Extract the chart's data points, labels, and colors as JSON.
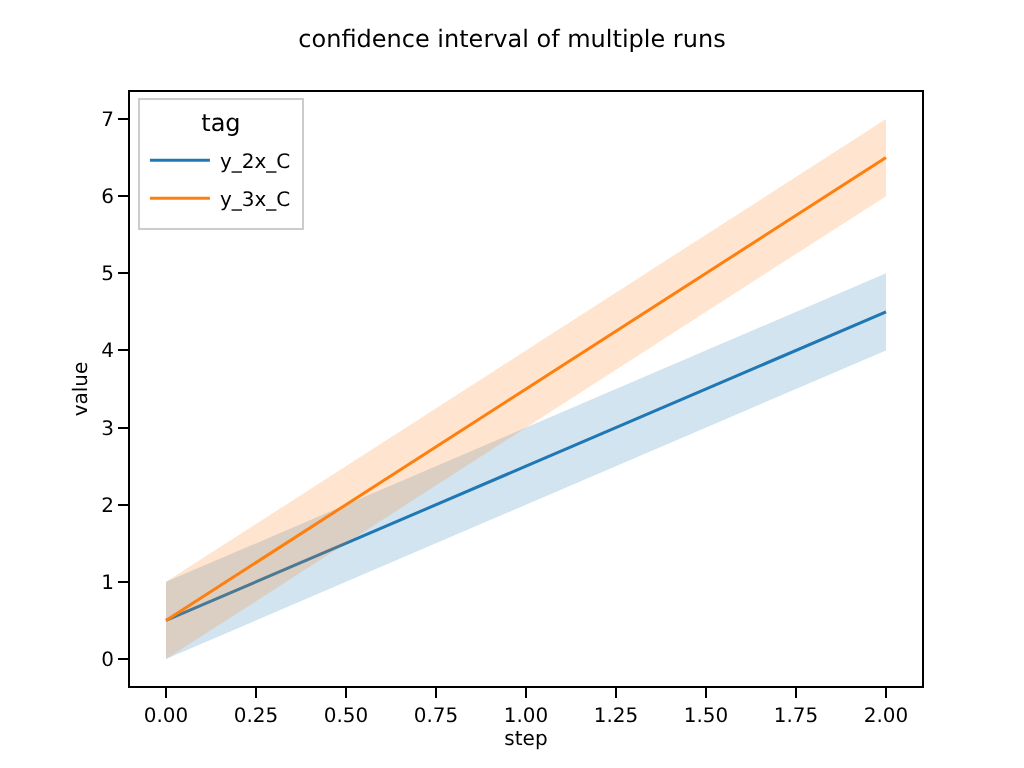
{
  "chart_data": {
    "type": "line",
    "title": "confidence interval of multiple runs",
    "xlabel": "step",
    "ylabel": "value",
    "legend_title": "tag",
    "x": [
      0,
      1,
      2
    ],
    "series": [
      {
        "name": "y_2x_C",
        "color": "#1f77b4",
        "values": [
          0.5,
          2.5,
          4.5
        ],
        "lower": [
          0,
          2,
          4
        ],
        "upper": [
          1,
          3,
          5
        ]
      },
      {
        "name": "y_3x_C",
        "color": "#ff7f0e",
        "values": [
          0.5,
          3.5,
          6.5
        ],
        "lower": [
          0,
          3,
          6
        ],
        "upper": [
          1,
          4,
          7
        ]
      }
    ],
    "xlim": [
      -0.1,
      2.1
    ],
    "xticks": [
      {
        "value": 0,
        "label": "0.00"
      },
      0.25,
      {
        "value": 0.5,
        "label": "0.50"
      },
      0.75,
      {
        "value": 1,
        "label": "1.00"
      },
      1.25,
      {
        "value": 1.5,
        "label": "1.50"
      },
      1.75,
      {
        "value": 2,
        "label": "2.00"
      }
    ],
    "ylim": [
      -0.35,
      7.35
    ],
    "yticks": [
      0,
      1,
      2,
      3,
      4,
      5,
      6,
      7
    ],
    "legend": "top left"
  }
}
